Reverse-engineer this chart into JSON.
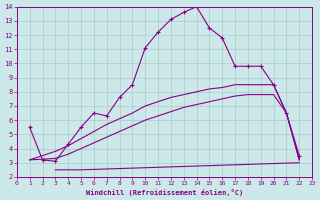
{
  "bg_color": "#cce8e8",
  "line_color": "#880088",
  "grid_color": "#aacccc",
  "xlabel": "Windchill (Refroidissement éolien,°C)",
  "xlim": [
    0,
    23
  ],
  "ylim": [
    2,
    14
  ],
  "xticks": [
    0,
    1,
    2,
    3,
    4,
    5,
    6,
    7,
    8,
    9,
    10,
    11,
    12,
    13,
    14,
    15,
    16,
    17,
    18,
    19,
    20,
    21,
    22,
    23
  ],
  "yticks": [
    2,
    3,
    4,
    5,
    6,
    7,
    8,
    9,
    10,
    11,
    12,
    13,
    14
  ],
  "line1_x": [
    1,
    2,
    3,
    4,
    5,
    6,
    7,
    8,
    9,
    10,
    11,
    12,
    13,
    14,
    15,
    16,
    17,
    18,
    19,
    20,
    21,
    22
  ],
  "line1_y": [
    5.5,
    3.2,
    3.1,
    4.3,
    5.5,
    6.5,
    6.3,
    7.6,
    8.5,
    11.1,
    12.2,
    13.1,
    13.6,
    14.0,
    12.5,
    11.8,
    9.8,
    9.8,
    9.8,
    8.5,
    6.5,
    3.5
  ],
  "line2_x": [
    1,
    3,
    4,
    5,
    6,
    7,
    8,
    9,
    10,
    11,
    12,
    13,
    14,
    15,
    16,
    17,
    18,
    19,
    20,
    21,
    22
  ],
  "line2_y": [
    3.2,
    3.8,
    4.2,
    4.7,
    5.2,
    5.7,
    6.1,
    6.5,
    7.0,
    7.3,
    7.6,
    7.8,
    8.0,
    8.2,
    8.3,
    8.5,
    8.5,
    8.5,
    8.5,
    6.5,
    3.2
  ],
  "line3_x": [
    1,
    3,
    4,
    5,
    6,
    7,
    8,
    9,
    10,
    11,
    12,
    13,
    14,
    15,
    16,
    17,
    18,
    19,
    20,
    21,
    22
  ],
  "line3_y": [
    3.2,
    3.3,
    3.6,
    4.0,
    4.4,
    4.8,
    5.2,
    5.6,
    6.0,
    6.3,
    6.6,
    6.9,
    7.1,
    7.3,
    7.5,
    7.7,
    7.8,
    7.8,
    7.8,
    6.5,
    3.2
  ],
  "line4_x": [
    3,
    5,
    22
  ],
  "line4_y": [
    2.5,
    2.5,
    3.0
  ]
}
